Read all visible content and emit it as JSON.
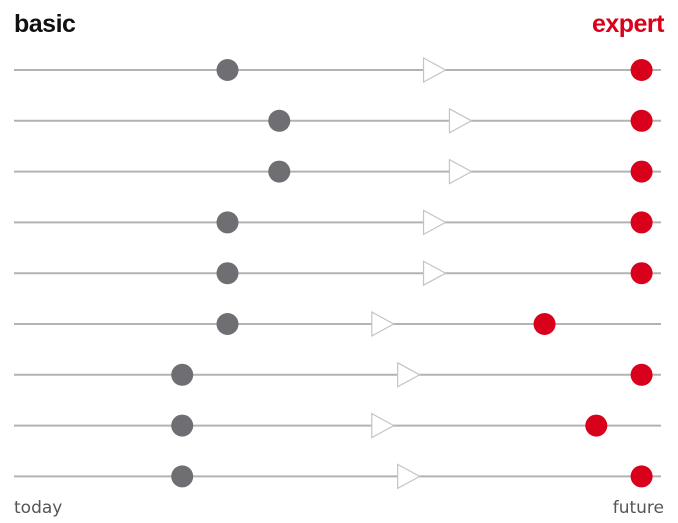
{
  "chart_data": {
    "type": "scatter",
    "labels": {
      "left_top": "basic",
      "right_top": "expert",
      "left_bottom": "today",
      "right_bottom": "future"
    },
    "x_range": [
      0,
      1
    ],
    "rows": [
      {
        "current": 0.33,
        "target": 0.65,
        "expert": 0.97
      },
      {
        "current": 0.41,
        "target": 0.69,
        "expert": 0.97
      },
      {
        "current": 0.41,
        "target": 0.69,
        "expert": 0.97
      },
      {
        "current": 0.33,
        "target": 0.65,
        "expert": 0.97
      },
      {
        "current": 0.33,
        "target": 0.65,
        "expert": 0.97
      },
      {
        "current": 0.33,
        "target": 0.57,
        "expert": 0.82
      },
      {
        "current": 0.26,
        "target": 0.61,
        "expert": 0.97
      },
      {
        "current": 0.26,
        "target": 0.57,
        "expert": 0.9
      },
      {
        "current": 0.26,
        "target": 0.61,
        "expert": 0.97
      }
    ],
    "colors": {
      "line": "#b3b3b3",
      "current_marker": "#6f6f73",
      "target_marker_stroke": "#c4c4c4",
      "expert_marker": "#d9001b",
      "expert_label": "#d9001b"
    }
  }
}
